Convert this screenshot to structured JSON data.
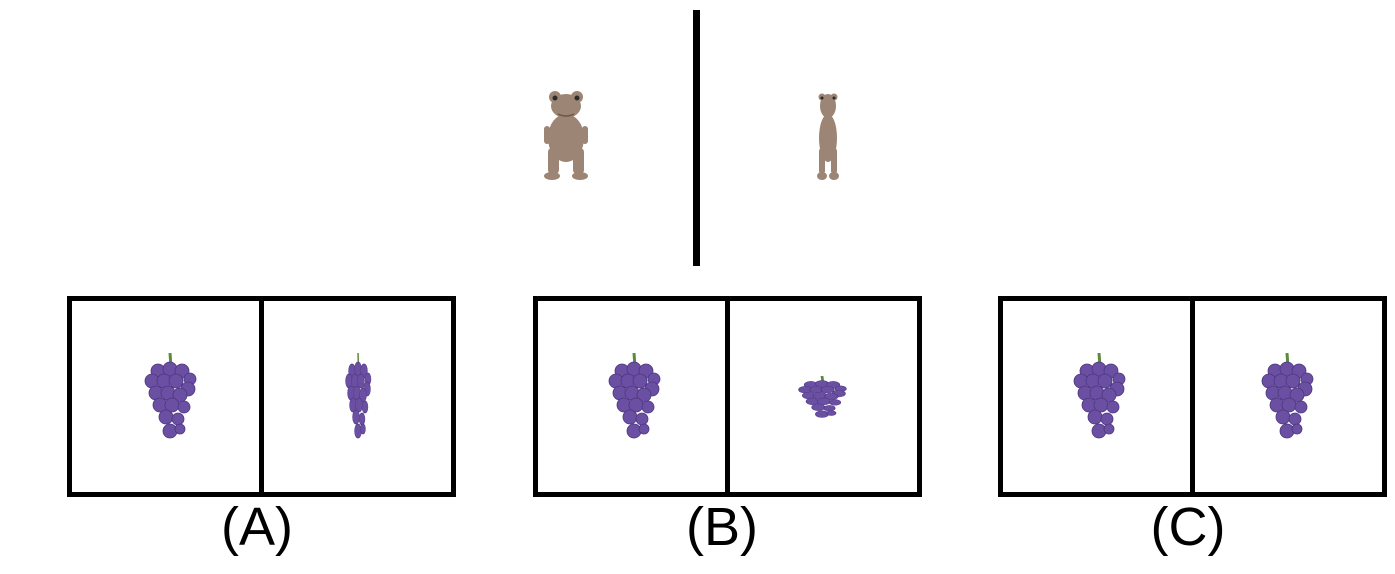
{
  "reference": {
    "left_icon": "dinosaur-front-view-icon",
    "right_icon": "dinosaur-side-squeezed-icon"
  },
  "options": [
    {
      "label": "(A)",
      "left_icon": "grapes-icon",
      "right_icon": "grapes-squeezed-horizontal-icon"
    },
    {
      "label": "(B)",
      "left_icon": "grapes-icon",
      "right_icon": "grapes-squeezed-vertical-icon"
    },
    {
      "label": "(C)",
      "left_icon": "grapes-icon",
      "right_icon": "grapes-icon"
    }
  ],
  "colors": {
    "border": "#000000",
    "grape": "#6a4fa3",
    "grape_dark": "#4e3880",
    "stem": "#5c8a3a",
    "dinosaur": "#9c8574"
  }
}
